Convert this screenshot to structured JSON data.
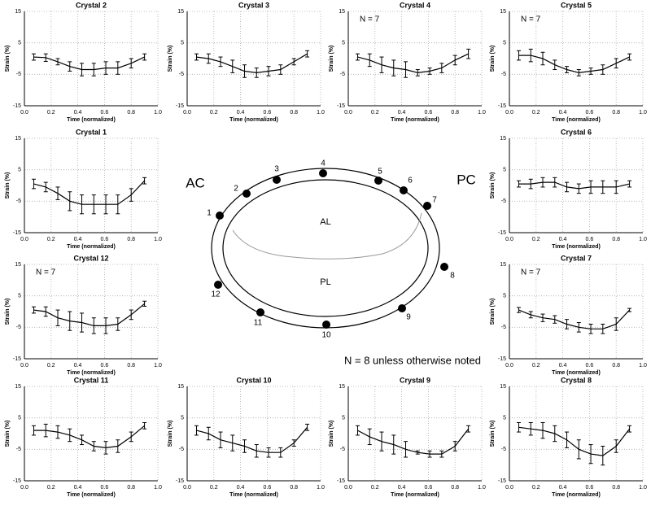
{
  "chart_data": [
    {
      "type": "line",
      "title": "Crystal 2",
      "x_label": "Time (normalized)",
      "y_label": "Strain (%)",
      "xlim": [
        0,
        1
      ],
      "ylim": [
        -15,
        15
      ],
      "xticks": [
        {
          "value": 0,
          "label": "0.0"
        },
        0.2,
        0.4,
        0.6,
        0.8,
        {
          "value": 1,
          "label": "1.0"
        }
      ],
      "yticks": [
        15,
        5,
        -5,
        -15
      ],
      "grid": true,
      "x": [
        0.07,
        0.16,
        0.25,
        0.34,
        0.43,
        0.52,
        0.61,
        0.7,
        0.8,
        0.9
      ],
      "series": [
        {
          "color": "#000000",
          "values": [
            0.5,
            0.3,
            -1,
            -2.5,
            -3.5,
            -3.5,
            -3,
            -3,
            -1.5,
            0.5
          ],
          "errors": [
            1,
            1.2,
            1,
            1.5,
            2,
            2,
            2,
            2,
            1.5,
            1
          ]
        }
      ]
    },
    {
      "type": "line",
      "title": "Crystal 3",
      "x_label": "Time (normalized)",
      "y_label": "Strain (%)",
      "xlim": [
        0,
        1
      ],
      "ylim": [
        -15,
        15
      ],
      "xticks": [
        {
          "value": 0,
          "label": "0.0"
        },
        0.2,
        0.4,
        0.6,
        0.8,
        {
          "value": 1,
          "label": "1.0"
        }
      ],
      "yticks": [
        15,
        5,
        -5,
        -15
      ],
      "grid": true,
      "x": [
        0.07,
        0.16,
        0.25,
        0.34,
        0.43,
        0.52,
        0.61,
        0.7,
        0.8,
        0.9
      ],
      "series": [
        {
          "color": "#000000",
          "values": [
            0.5,
            0,
            -1,
            -2.5,
            -4,
            -4.5,
            -4,
            -3.5,
            -1,
            1.5
          ],
          "errors": [
            1,
            1.5,
            1.5,
            2,
            2,
            1.5,
            1.5,
            1.5,
            1,
            1
          ]
        }
      ]
    },
    {
      "type": "line",
      "title": "Crystal 4",
      "annotation": "N = 7",
      "x_label": "Time (normalized)",
      "y_label": "Strain (%)",
      "xlim": [
        0,
        1
      ],
      "ylim": [
        -15,
        15
      ],
      "xticks": [
        {
          "value": 0,
          "label": "0.0"
        },
        0.2,
        0.4,
        0.6,
        0.8,
        {
          "value": 1,
          "label": "1.0"
        }
      ],
      "yticks": [
        15,
        5,
        -5,
        -15
      ],
      "grid": true,
      "x": [
        0.07,
        0.16,
        0.25,
        0.34,
        0.43,
        0.52,
        0.61,
        0.7,
        0.8,
        0.9
      ],
      "series": [
        {
          "color": "#000000",
          "values": [
            0.5,
            -0.5,
            -2,
            -3,
            -3.5,
            -4.5,
            -4,
            -3,
            -0.5,
            1.5
          ],
          "errors": [
            1,
            2,
            2.5,
            2.5,
            2.5,
            1,
            1,
            1.5,
            1.5,
            1.5
          ]
        }
      ]
    },
    {
      "type": "line",
      "title": "Crystal 5",
      "annotation": "N = 7",
      "x_label": "Time (normalized)",
      "y_label": "Strain (%)",
      "xlim": [
        0,
        1
      ],
      "ylim": [
        -15,
        15
      ],
      "xticks": [
        {
          "value": 0,
          "label": "0.0"
        },
        0.2,
        0.4,
        0.6,
        0.8,
        {
          "value": 1,
          "label": "1.0"
        }
      ],
      "yticks": [
        15,
        5,
        -5,
        -15
      ],
      "grid": true,
      "x": [
        0.07,
        0.16,
        0.25,
        0.34,
        0.43,
        0.52,
        0.61,
        0.7,
        0.8,
        0.9
      ],
      "series": [
        {
          "color": "#000000",
          "values": [
            1,
            1,
            0,
            -2,
            -3.5,
            -4.5,
            -4,
            -3.5,
            -1.5,
            0.5
          ],
          "errors": [
            1.5,
            2,
            2,
            1.5,
            1,
            1,
            1,
            1.5,
            1.5,
            1
          ]
        }
      ]
    },
    {
      "type": "line",
      "title": "Crystal 1",
      "x_label": "Time (normalized)",
      "y_label": "Strain (%)",
      "xlim": [
        0,
        1
      ],
      "ylim": [
        -15,
        15
      ],
      "xticks": [
        {
          "value": 0,
          "label": "0.0"
        },
        0.2,
        0.4,
        0.6,
        0.8,
        {
          "value": 1,
          "label": "1.0"
        }
      ],
      "yticks": [
        15,
        5,
        -5,
        -15
      ],
      "grid": true,
      "x": [
        0.07,
        0.16,
        0.25,
        0.34,
        0.43,
        0.52,
        0.61,
        0.7,
        0.8,
        0.9
      ],
      "series": [
        {
          "color": "#000000",
          "values": [
            0.5,
            -0.5,
            -2.5,
            -5,
            -6,
            -6,
            -6,
            -6,
            -3,
            1.5
          ],
          "errors": [
            1.5,
            1.5,
            2,
            3,
            3,
            3,
            3,
            3,
            2,
            1
          ]
        }
      ]
    },
    {
      "type": "line",
      "title": "Crystal 6",
      "x_label": "Time (normalized)",
      "y_label": "Strain (%)",
      "xlim": [
        0,
        1
      ],
      "ylim": [
        -15,
        15
      ],
      "xticks": [
        {
          "value": 0,
          "label": "0.0"
        },
        0.2,
        0.4,
        0.6,
        0.8,
        {
          "value": 1,
          "label": "1.0"
        }
      ],
      "yticks": [
        15,
        5,
        -5,
        -15
      ],
      "grid": true,
      "x": [
        0.07,
        0.16,
        0.25,
        0.34,
        0.43,
        0.52,
        0.61,
        0.7,
        0.8,
        0.9
      ],
      "series": [
        {
          "color": "#000000",
          "values": [
            0.5,
            0.5,
            1,
            1,
            -0.5,
            -1,
            -0.5,
            -0.5,
            -0.5,
            0.5
          ],
          "errors": [
            1,
            1.5,
            1.5,
            1.5,
            1.5,
            1.5,
            2,
            2,
            2,
            1
          ]
        }
      ]
    },
    {
      "type": "line",
      "title": "Crystal 12",
      "annotation": "N = 7",
      "x_label": "Time (normalized)",
      "y_label": "Strain (%)",
      "xlim": [
        0,
        1
      ],
      "ylim": [
        -15,
        15
      ],
      "xticks": [
        {
          "value": 0,
          "label": "0.0"
        },
        0.2,
        0.4,
        0.6,
        0.8,
        {
          "value": 1,
          "label": "1.0"
        }
      ],
      "yticks": [
        15,
        5,
        -5,
        -15
      ],
      "grid": true,
      "x": [
        0.07,
        0.16,
        0.25,
        0.34,
        0.43,
        0.52,
        0.61,
        0.7,
        0.8,
        0.9
      ],
      "series": [
        {
          "color": "#000000",
          "values": [
            0.5,
            0,
            -2,
            -3,
            -3.5,
            -4.5,
            -4.5,
            -4,
            -1,
            2.5
          ],
          "errors": [
            1,
            1.5,
            2.5,
            3,
            3,
            2.5,
            2.5,
            2,
            1.5,
            0.8
          ]
        }
      ]
    },
    {
      "type": "line",
      "title": "Crystal 7",
      "annotation": "N = 7",
      "x_label": "Time (normalized)",
      "y_label": "Strain (%)",
      "xlim": [
        0,
        1
      ],
      "ylim": [
        -15,
        15
      ],
      "xticks": [
        {
          "value": 0,
          "label": "0.0"
        },
        0.2,
        0.4,
        0.6,
        0.8,
        {
          "value": 1,
          "label": "1.0"
        }
      ],
      "yticks": [
        15,
        5,
        -5,
        -15
      ],
      "grid": true,
      "x": [
        0.07,
        0.16,
        0.25,
        0.34,
        0.43,
        0.52,
        0.61,
        0.7,
        0.8,
        0.9
      ],
      "series": [
        {
          "color": "#000000",
          "values": [
            0.5,
            -1,
            -2,
            -2.5,
            -4,
            -5,
            -5.5,
            -5.5,
            -4,
            0.5
          ],
          "errors": [
            0.8,
            1,
            1.2,
            1.2,
            1.5,
            1.5,
            1.5,
            1.5,
            2,
            0.5
          ]
        }
      ]
    },
    {
      "type": "line",
      "title": "Crystal 11",
      "x_label": "Time (normalized)",
      "y_label": "Strain (%)",
      "xlim": [
        0,
        1
      ],
      "ylim": [
        -15,
        15
      ],
      "xticks": [
        {
          "value": 0,
          "label": "0.0"
        },
        0.2,
        0.4,
        0.6,
        0.8,
        {
          "value": 1,
          "label": "1.0"
        }
      ],
      "yticks": [
        15,
        5,
        -5,
        -15
      ],
      "grid": true,
      "x": [
        0.07,
        0.16,
        0.25,
        0.34,
        0.43,
        0.52,
        0.61,
        0.7,
        0.8,
        0.9
      ],
      "series": [
        {
          "color": "#000000",
          "values": [
            1,
            1,
            0.5,
            -0.5,
            -2,
            -4,
            -4.5,
            -4,
            -1,
            2.5
          ],
          "errors": [
            1.5,
            2,
            2,
            2,
            1.5,
            1.5,
            2,
            2,
            1.5,
            1
          ]
        }
      ]
    },
    {
      "type": "line",
      "title": "Crystal 10",
      "x_label": "Time (normalized)",
      "y_label": "Strain (%)",
      "xlim": [
        0,
        1
      ],
      "ylim": [
        -15,
        15
      ],
      "xticks": [
        {
          "value": 0,
          "label": "0.0"
        },
        0.2,
        0.4,
        0.6,
        0.8,
        {
          "value": 1,
          "label": "1.0"
        }
      ],
      "yticks": [
        15,
        5,
        -5,
        -15
      ],
      "grid": true,
      "x": [
        0.07,
        0.16,
        0.25,
        0.34,
        0.43,
        0.52,
        0.61,
        0.7,
        0.8,
        0.9
      ],
      "series": [
        {
          "color": "#000000",
          "values": [
            1,
            0,
            -2,
            -3,
            -4,
            -5.5,
            -6,
            -6,
            -3,
            2
          ],
          "errors": [
            1.5,
            2,
            2.5,
            2.5,
            2,
            2,
            1.5,
            1.5,
            1,
            1
          ]
        }
      ]
    },
    {
      "type": "line",
      "title": "Crystal 9",
      "x_label": "Time (normalized)",
      "y_label": "Strain (%)",
      "xlim": [
        0,
        1
      ],
      "ylim": [
        -15,
        15
      ],
      "xticks": [
        {
          "value": 0,
          "label": "0.0"
        },
        0.2,
        0.4,
        0.6,
        0.8,
        {
          "value": 1,
          "label": "1.0"
        }
      ],
      "yticks": [
        15,
        5,
        -5,
        -15
      ],
      "grid": true,
      "x": [
        0.07,
        0.16,
        0.25,
        0.34,
        0.43,
        0.52,
        0.61,
        0.7,
        0.8,
        0.9
      ],
      "series": [
        {
          "color": "#000000",
          "values": [
            1,
            -1,
            -2.5,
            -3.5,
            -5,
            -6,
            -6.5,
            -6.5,
            -4,
            1.5
          ],
          "errors": [
            1.5,
            2.5,
            3,
            3,
            2.5,
            0.5,
            1,
            1,
            1.5,
            1
          ]
        }
      ]
    },
    {
      "type": "line",
      "title": "Crystal 8",
      "x_label": "Time (normalized)",
      "y_label": "Strain (%)",
      "xlim": [
        0,
        1
      ],
      "ylim": [
        -15,
        15
      ],
      "xticks": [
        {
          "value": 0,
          "label": "0.0"
        },
        0.2,
        0.4,
        0.6,
        0.8,
        {
          "value": 1,
          "label": "1.0"
        }
      ],
      "yticks": [
        15,
        5,
        -5,
        -15
      ],
      "grid": true,
      "x": [
        0.07,
        0.16,
        0.25,
        0.34,
        0.43,
        0.52,
        0.61,
        0.7,
        0.8,
        0.9
      ],
      "series": [
        {
          "color": "#000000",
          "values": [
            2,
            1.5,
            1,
            0,
            -2,
            -5,
            -6.5,
            -7,
            -4,
            1.5
          ],
          "errors": [
            1.5,
            2,
            2.5,
            2.5,
            2.5,
            3,
            3,
            3,
            2,
            1
          ]
        }
      ]
    }
  ],
  "diagram": {
    "left_label": "AC",
    "right_label": "PC",
    "upper_region": "AL",
    "lower_region": "PL",
    "crystals": [
      "1",
      "2",
      "3",
      "4",
      "5",
      "6",
      "7",
      "8",
      "9",
      "10",
      "11",
      "12"
    ],
    "note": "N = 8 unless otherwise noted"
  }
}
